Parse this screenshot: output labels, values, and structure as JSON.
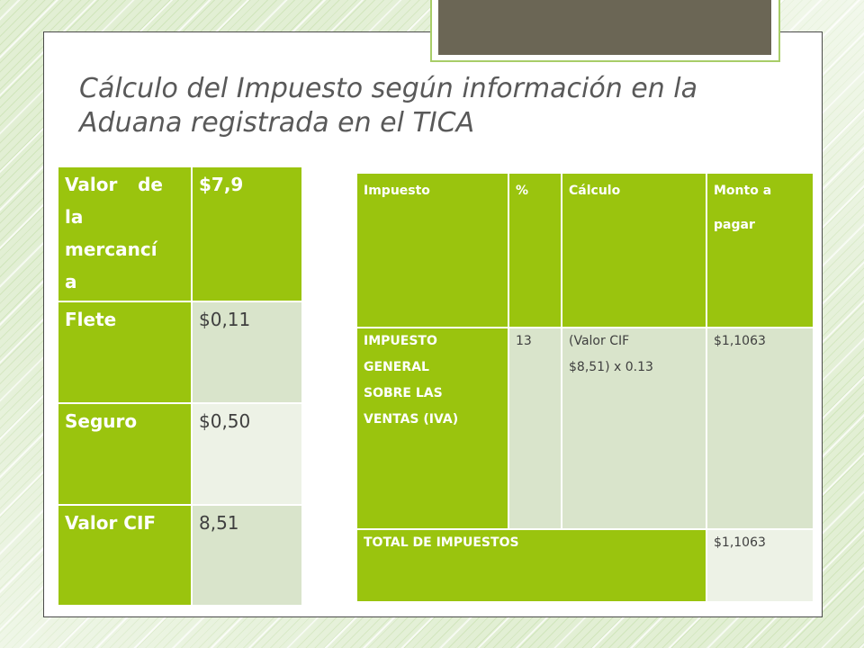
{
  "slide": {
    "title": "Cálculo del Impuesto según información en la Aduana registrada en el TICA"
  },
  "values_table": {
    "rows": [
      {
        "label": "Valor de la mercancía",
        "value": "$7,9"
      },
      {
        "label": "Flete",
        "value": "$0,11"
      },
      {
        "label": "Seguro",
        "value": "$0,50"
      },
      {
        "label": "Valor CIF",
        "value": "8,51"
      }
    ]
  },
  "tax_table": {
    "headers": [
      "Impuesto",
      "%",
      "Cálculo",
      "Monto a pagar"
    ],
    "rows": [
      {
        "impuesto": "IMPUESTO GENERAL SOBRE LAS VENTAS (IVA)",
        "porcentaje": "13",
        "calculo": "(Valor CIF $8,51) x 0.13",
        "monto": "$1,1063"
      }
    ],
    "total": {
      "label": "TOTAL DE IMPUESTOS",
      "monto": "$1,1063"
    }
  },
  "colors": {
    "accent_green": "#9AC40E",
    "cell_light": "#D9E4CB",
    "cell_lighter": "#EDF2E6",
    "title_tab": "#6B6655",
    "title_text": "#595959"
  }
}
